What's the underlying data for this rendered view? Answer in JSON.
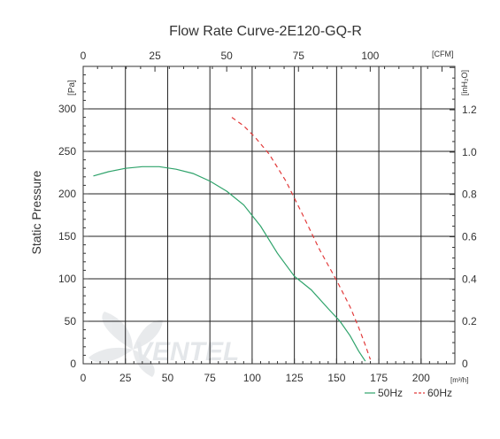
{
  "chart_data": {
    "type": "line",
    "title": "Flow Rate Curve-2E120-GQ-R",
    "ylabel": "Static Pressure",
    "y_unit_left": "[Pa]",
    "y_unit_right": "[inH₂O]",
    "x_unit_bottom": "[m³/h]",
    "x_unit_top": "[CFM]",
    "xlim": [
      0,
      220
    ],
    "ylim": [
      0,
      300
    ],
    "x_ticks": [
      "0",
      "25",
      "50",
      "75",
      "100",
      "125",
      "150",
      "175",
      "200"
    ],
    "y_ticks": [
      "0",
      "50",
      "100",
      "150",
      "200",
      "250",
      "300"
    ],
    "top_ticks": [
      "0",
      "25",
      "50",
      "75",
      "100"
    ],
    "right_ticks": [
      "0",
      "0.2",
      "0.4",
      "0.6",
      "0.8",
      "1.0",
      "1.2"
    ],
    "grid": true,
    "legend_position": "bottom-right",
    "watermark": "VENTEL",
    "series": [
      {
        "name": "50Hz",
        "color": "#2fa36b",
        "style": "solid",
        "points": [
          [
            6,
            221
          ],
          [
            15,
            226
          ],
          [
            25,
            230
          ],
          [
            35,
            232
          ],
          [
            45,
            232
          ],
          [
            55,
            229
          ],
          [
            65,
            224
          ],
          [
            75,
            215
          ],
          [
            85,
            203
          ],
          [
            95,
            187
          ],
          [
            105,
            162
          ],
          [
            115,
            130
          ],
          [
            125,
            103
          ],
          [
            135,
            87
          ],
          [
            145,
            65
          ],
          [
            152,
            50
          ],
          [
            158,
            33
          ],
          [
            163,
            15
          ],
          [
            167,
            3
          ]
        ]
      },
      {
        "name": "60Hz",
        "color": "#e23b3b",
        "style": "dashed",
        "points": [
          [
            88,
            290
          ],
          [
            95,
            280
          ],
          [
            102,
            266
          ],
          [
            110,
            247
          ],
          [
            120,
            215
          ],
          [
            130,
            175
          ],
          [
            140,
            134
          ],
          [
            150,
            98
          ],
          [
            158,
            67
          ],
          [
            163,
            43
          ],
          [
            167,
            22
          ],
          [
            170,
            5
          ]
        ]
      }
    ]
  }
}
